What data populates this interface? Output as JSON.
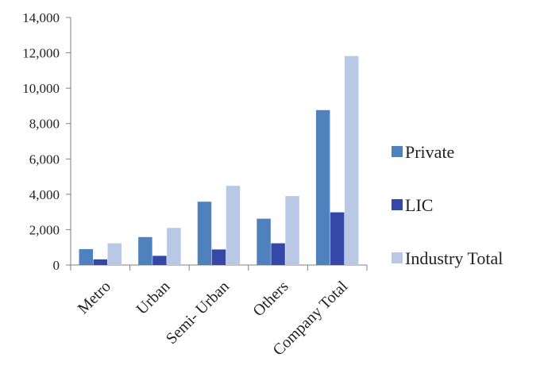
{
  "chart_data": {
    "type": "bar",
    "title": "",
    "xlabel": "",
    "ylabel": "",
    "categories": [
      "Metro",
      "Urban",
      "Semi- Urban",
      "Others",
      "Company Total"
    ],
    "series": [
      {
        "name": "Private",
        "color": "#4f81bd",
        "values": [
          900,
          1580,
          3580,
          2620,
          8760
        ]
      },
      {
        "name": "LIC",
        "color": "#3548a8",
        "values": [
          320,
          520,
          880,
          1230,
          2980
        ]
      },
      {
        "name": "Industry Total",
        "color": "#b9c9e5",
        "values": [
          1230,
          2100,
          4480,
          3900,
          11820
        ]
      }
    ],
    "ylim": [
      0,
      14000
    ],
    "yticks": [
      0,
      2000,
      4000,
      6000,
      8000,
      10000,
      12000,
      14000
    ],
    "ytick_labels": [
      "0",
      "2,000",
      "4,000",
      "6,000",
      "8,000",
      "10,000",
      "12,000",
      "14,000"
    ],
    "grid": false,
    "legend": "right"
  }
}
